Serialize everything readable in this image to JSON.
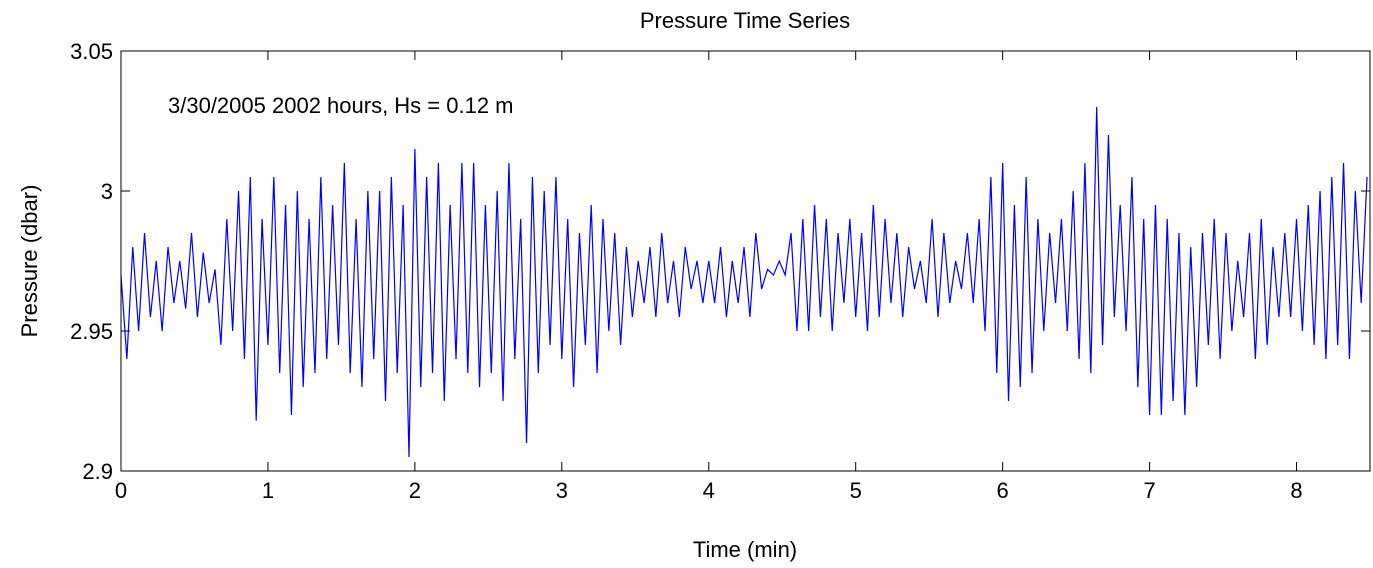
{
  "chart_data": {
    "type": "line",
    "title": "Pressure Time Series",
    "xlabel": "Time (min)",
    "ylabel": "Pressure (dbar)",
    "annotation": "3/30/2005 2002 hours, Hs = 0.12 m",
    "xlim": [
      0,
      8.5
    ],
    "ylim": [
      2.9,
      3.05
    ],
    "xticks": [
      0,
      1,
      2,
      3,
      4,
      5,
      6,
      7,
      8
    ],
    "yticks": [
      2.9,
      2.95,
      3,
      3.05
    ],
    "x": [
      0,
      0.04,
      0.08,
      0.12,
      0.16,
      0.2,
      0.24,
      0.28,
      0.32,
      0.36,
      0.4,
      0.44,
      0.48,
      0.52,
      0.56,
      0.6,
      0.64,
      0.68,
      0.72,
      0.76,
      0.8,
      0.84,
      0.88,
      0.92,
      0.96,
      1,
      1.04,
      1.08,
      1.12,
      1.16,
      1.2,
      1.24,
      1.28,
      1.32,
      1.36,
      1.4,
      1.44,
      1.48,
      1.52,
      1.56,
      1.6,
      1.64,
      1.68,
      1.72,
      1.76,
      1.8,
      1.84,
      1.88,
      1.92,
      1.96,
      2,
      2.04,
      2.08,
      2.12,
      2.16,
      2.2,
      2.24,
      2.28,
      2.32,
      2.36,
      2.4,
      2.44,
      2.48,
      2.52,
      2.56,
      2.6,
      2.64,
      2.68,
      2.72,
      2.76,
      2.8,
      2.84,
      2.88,
      2.92,
      2.96,
      3,
      3.04,
      3.08,
      3.12,
      3.16,
      3.2,
      3.24,
      3.28,
      3.32,
      3.36,
      3.4,
      3.44,
      3.48,
      3.52,
      3.56,
      3.6,
      3.64,
      3.68,
      3.72,
      3.76,
      3.8,
      3.84,
      3.88,
      3.92,
      3.96,
      4,
      4.04,
      4.08,
      4.12,
      4.16,
      4.2,
      4.24,
      4.28,
      4.32,
      4.36,
      4.4,
      4.44,
      4.48,
      4.52,
      4.56,
      4.6,
      4.64,
      4.68,
      4.72,
      4.76,
      4.8,
      4.84,
      4.88,
      4.92,
      4.96,
      5,
      5.04,
      5.08,
      5.12,
      5.16,
      5.2,
      5.24,
      5.28,
      5.32,
      5.36,
      5.4,
      5.44,
      5.48,
      5.52,
      5.56,
      5.6,
      5.64,
      5.68,
      5.72,
      5.76,
      5.8,
      5.84,
      5.88,
      5.92,
      5.96,
      6,
      6.04,
      6.08,
      6.12,
      6.16,
      6.2,
      6.24,
      6.28,
      6.32,
      6.36,
      6.4,
      6.44,
      6.48,
      6.52,
      6.56,
      6.6,
      6.64,
      6.68,
      6.72,
      6.76,
      6.8,
      6.84,
      6.88,
      6.92,
      6.96,
      7,
      7.04,
      7.08,
      7.12,
      7.16,
      7.2,
      7.24,
      7.28,
      7.32,
      7.36,
      7.4,
      7.44,
      7.48,
      7.52,
      7.56,
      7.6,
      7.64,
      7.68,
      7.72,
      7.76,
      7.8,
      7.84,
      7.88,
      7.92,
      7.96,
      8,
      8.04,
      8.08,
      8.12,
      8.16,
      8.2,
      8.24,
      8.28,
      8.32,
      8.36,
      8.4,
      8.44,
      8.48
    ],
    "series": [
      {
        "color": "#0000ff",
        "values": [
          2.97,
          2.94,
          2.98,
          2.95,
          2.985,
          2.955,
          2.975,
          2.95,
          2.98,
          2.96,
          2.975,
          2.958,
          2.985,
          2.955,
          2.978,
          2.96,
          2.972,
          2.945,
          2.99,
          2.95,
          3.0,
          2.94,
          3.005,
          2.918,
          2.99,
          2.945,
          3.005,
          2.935,
          2.995,
          2.92,
          3.0,
          2.93,
          2.99,
          2.935,
          3.005,
          2.94,
          2.995,
          2.945,
          3.01,
          2.935,
          2.99,
          2.93,
          3.0,
          2.94,
          3.0,
          2.925,
          3.005,
          2.935,
          2.995,
          2.905,
          3.015,
          2.93,
          3.005,
          2.935,
          3.01,
          2.925,
          2.995,
          2.94,
          3.01,
          2.935,
          3.01,
          2.93,
          2.995,
          2.935,
          3.0,
          2.925,
          3.01,
          2.94,
          2.99,
          2.91,
          3.005,
          2.935,
          3.0,
          2.945,
          3.005,
          2.94,
          2.99,
          2.93,
          2.985,
          2.945,
          2.995,
          2.935,
          2.99,
          2.95,
          2.985,
          2.945,
          2.98,
          2.955,
          2.975,
          2.96,
          2.98,
          2.955,
          2.985,
          2.96,
          2.975,
          2.955,
          2.98,
          2.965,
          2.975,
          2.96,
          2.975,
          2.96,
          2.98,
          2.955,
          2.975,
          2.96,
          2.98,
          2.955,
          2.985,
          2.965,
          2.972,
          2.97,
          2.975,
          2.97,
          2.985,
          2.95,
          2.99,
          2.95,
          2.995,
          2.955,
          2.99,
          2.95,
          2.985,
          2.96,
          2.99,
          2.955,
          2.985,
          2.95,
          2.995,
          2.955,
          2.99,
          2.96,
          2.985,
          2.955,
          2.98,
          2.965,
          2.975,
          2.96,
          2.99,
          2.955,
          2.985,
          2.96,
          2.975,
          2.965,
          2.985,
          2.96,
          2.99,
          2.95,
          3.005,
          2.935,
          3.01,
          2.925,
          2.995,
          2.93,
          3.005,
          2.935,
          2.99,
          2.95,
          2.985,
          2.96,
          2.99,
          2.95,
          3.0,
          2.94,
          3.01,
          2.935,
          3.03,
          2.945,
          3.02,
          2.955,
          2.995,
          2.95,
          3.005,
          2.93,
          2.99,
          2.92,
          2.995,
          2.92,
          2.99,
          2.925,
          2.985,
          2.92,
          2.98,
          2.93,
          2.985,
          2.945,
          2.99,
          2.94,
          2.985,
          2.95,
          2.975,
          2.955,
          2.985,
          2.94,
          2.99,
          2.945,
          2.98,
          2.955,
          2.985,
          2.955,
          2.99,
          2.95,
          2.995,
          2.945,
          3.0,
          2.94,
          3.005,
          2.945,
          3.01,
          2.94,
          3.0,
          2.96,
          3.005
        ]
      }
    ]
  }
}
